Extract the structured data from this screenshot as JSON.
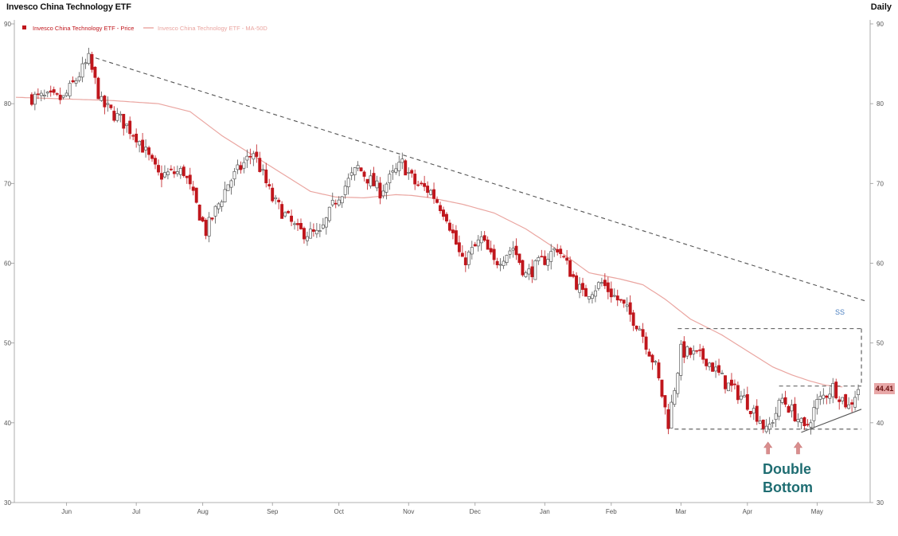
{
  "header": {
    "title": "Invesco China Technology ETF",
    "frequency": "Daily"
  },
  "annotations": {
    "line1": "Double",
    "line2": "Bottom",
    "current_price": "44.41",
    "marker": "SS"
  },
  "colors": {
    "down_candle": "#c0161c",
    "up_candle": "#ffffff",
    "candle_outline": "#555555",
    "ma_line": "#eaa5a0",
    "trend_line": "#555555",
    "annotation_text": "#1f6d72",
    "arrow": "#d98e8e"
  },
  "chart_data": {
    "type": "candlestick",
    "title": "Invesco China Technology ETF",
    "frequency": "Daily",
    "legend": [
      {
        "name": "Invesco China Technology ETF - Price",
        "color": "#c0161c",
        "marker": "square"
      },
      {
        "name": "Invesco China Technology ETF - MA-50D",
        "color": "#eaa5a0",
        "marker": "line"
      }
    ],
    "legend_position": "top-left",
    "y_ticks": [
      90,
      80,
      70,
      60,
      50,
      40,
      30
    ],
    "ylim": [
      30,
      90
    ],
    "y_axis_both_sides": true,
    "x_ticks": [
      "Jun",
      "Jul",
      "Aug",
      "Sep",
      "Oct",
      "Nov",
      "Dec",
      "Jan",
      "Feb",
      "Mar",
      "Apr",
      "May"
    ],
    "x_tick_index": [
      11,
      33,
      54,
      76,
      97,
      119,
      140,
      162,
      183,
      205,
      226,
      248
    ],
    "index_range": [
      -5,
      264
    ],
    "price_path": [
      [
        0,
        80.8
      ],
      [
        10,
        80.6
      ],
      [
        18,
        85.5
      ],
      [
        22,
        80
      ],
      [
        28,
        78
      ],
      [
        33,
        76
      ],
      [
        40,
        71
      ],
      [
        48,
        71.5
      ],
      [
        55,
        64
      ],
      [
        62,
        70
      ],
      [
        70,
        74
      ],
      [
        76,
        68
      ],
      [
        84,
        64
      ],
      [
        91,
        63.5
      ],
      [
        96,
        68
      ],
      [
        103,
        72
      ],
      [
        110,
        69
      ],
      [
        117,
        72.5
      ],
      [
        121,
        70
      ],
      [
        126,
        69
      ],
      [
        131,
        66
      ],
      [
        136,
        60
      ],
      [
        142,
        63
      ],
      [
        146,
        60
      ],
      [
        152,
        62
      ],
      [
        156,
        58.5
      ],
      [
        162,
        60.5
      ],
      [
        166,
        62
      ],
      [
        170,
        59
      ],
      [
        174,
        56
      ],
      [
        180,
        57.5
      ],
      [
        186,
        55
      ],
      [
        192,
        52
      ],
      [
        197,
        47
      ],
      [
        201,
        40
      ],
      [
        205,
        49
      ],
      [
        213,
        48
      ],
      [
        219,
        45
      ],
      [
        225,
        43
      ],
      [
        230,
        40.5
      ],
      [
        232,
        38.8
      ],
      [
        237,
        43
      ],
      [
        242,
        40.5
      ],
      [
        244,
        39
      ],
      [
        248,
        42.5
      ],
      [
        253,
        44.5
      ],
      [
        258,
        42
      ],
      [
        261,
        44.4
      ]
    ],
    "ma50_path": [
      [
        -5,
        80.8
      ],
      [
        10,
        80.6
      ],
      [
        25,
        80.4
      ],
      [
        40,
        80
      ],
      [
        50,
        79
      ],
      [
        60,
        76
      ],
      [
        70,
        73.5
      ],
      [
        80,
        71
      ],
      [
        88,
        69
      ],
      [
        96,
        68.3
      ],
      [
        105,
        68.2
      ],
      [
        115,
        68.6
      ],
      [
        120,
        68.5
      ],
      [
        126,
        68.2
      ],
      [
        136,
        67.4
      ],
      [
        146,
        66.3
      ],
      [
        156,
        64.3
      ],
      [
        166,
        61.7
      ],
      [
        176,
        58.8
      ],
      [
        186,
        58
      ],
      [
        193,
        57.3
      ],
      [
        200,
        55.5
      ],
      [
        208,
        53
      ],
      [
        218,
        51
      ],
      [
        226,
        49
      ],
      [
        234,
        47
      ],
      [
        240,
        46
      ],
      [
        246,
        45.2
      ],
      [
        251,
        44.7
      ],
      [
        256,
        44.5
      ]
    ],
    "trend_lines": [
      {
        "name": "downtrend-line",
        "style": "dashed",
        "points": [
          [
            18,
            86
          ],
          [
            263,
            55.3
          ]
        ]
      },
      {
        "name": "resistance-box-top",
        "style": "dashed",
        "points": [
          [
            204,
            51.8
          ],
          [
            262,
            51.8
          ]
        ]
      },
      {
        "name": "box-right-side",
        "style": "dashed",
        "points": [
          [
            262,
            51.8
          ],
          [
            262,
            44.7
          ]
        ]
      },
      {
        "name": "double-bottom-neckline",
        "style": "dashed",
        "points": [
          [
            236,
            44.6
          ],
          [
            262,
            44.6
          ]
        ]
      },
      {
        "name": "support-line",
        "style": "dashed",
        "points": [
          [
            203,
            39.2
          ],
          [
            262,
            39.2
          ]
        ]
      },
      {
        "name": "rising-wedge-line",
        "style": "solid",
        "points": [
          [
            243,
            38.8
          ],
          [
            262,
            41.7
          ]
        ]
      }
    ],
    "arrows": [
      {
        "name": "first-bottom-arrow",
        "index": 232.5
      },
      {
        "name": "second-bottom-arrow",
        "index": 242
      }
    ],
    "annotations": {
      "text": [
        "Double",
        "Bottom"
      ],
      "current_price": 44.41,
      "marker": "SS"
    },
    "grid": false
  }
}
